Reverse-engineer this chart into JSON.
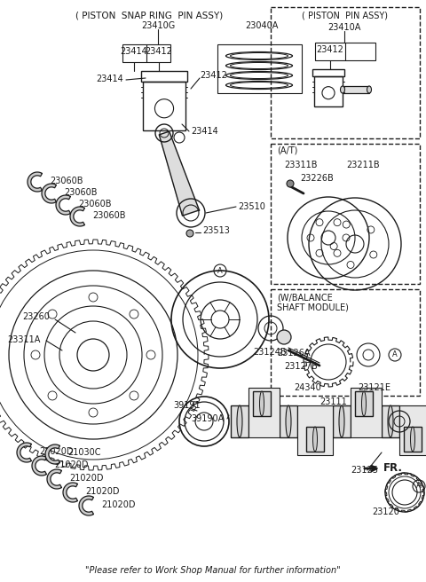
{
  "bg_color": "#ffffff",
  "line_color": "#1a1a1a",
  "text_color": "#1a1a1a",
  "footer": "\"Please refer to Work Shop Manual for further information\"",
  "box1_title": "( PISTON  SNAP RING  PIN ASSY)",
  "box1_410G": "23410G",
  "box1_040A": "23040A",
  "box1_414a": "23414",
  "box1_412a": "23412",
  "box1_414b": "23414",
  "box2_title": "( PISTON  PIN ASSY)",
  "box2_410A": "23410A",
  "box2_412": "23412",
  "box3_title": "(A/T)",
  "box3_311B": "23311B",
  "box3_211B": "23211B",
  "box3_226B": "23226B",
  "box4_title": "(W/BALANCE\nSHAFT MODULE)",
  "box4_340": "24340",
  "box4_121E": "23121E",
  "p23414_L": "23414",
  "p23412_L": "23412",
  "p23414_B": "23414",
  "p23060B_1": "23060B",
  "p23060B_2": "23060B",
  "p23060B_3": "23060B",
  "p23060B_4": "23060B",
  "p23510": "23510",
  "p23513": "23513",
  "p23260": "23260",
  "p23311A": "23311A",
  "p23124B": "23124B",
  "p23126A": "23126A",
  "p23127B": "23127B",
  "p39191": "39191",
  "p39190A": "39190A",
  "p23111": "23111",
  "p21030C": "21030C",
  "p21020D_1": "21020D",
  "p21020D_2": "21020D",
  "p21020D_3": "21020D",
  "p21020D_4": "21020D",
  "p21020D_5": "21020D",
  "p23125": "23125",
  "p23120": "23120",
  "p_FR": "FR."
}
